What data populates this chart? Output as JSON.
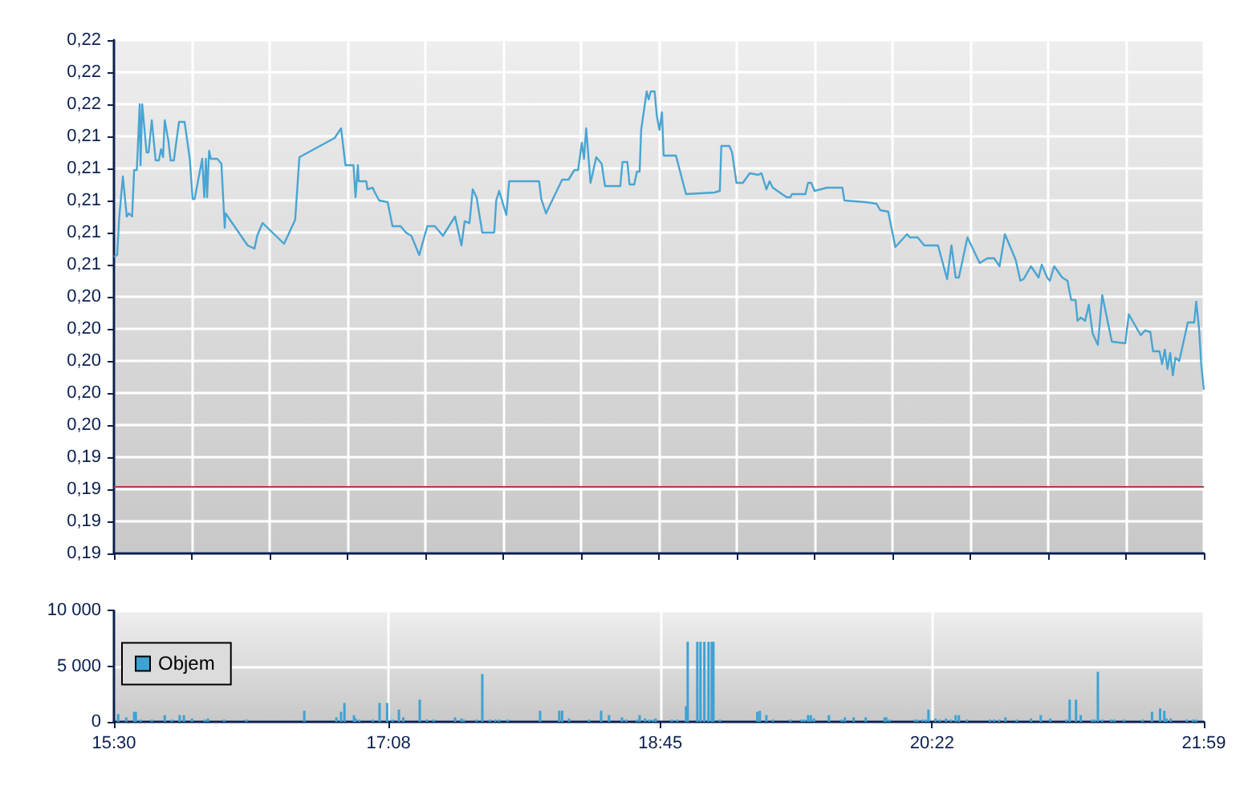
{
  "chart_data": [
    {
      "type": "line",
      "color": "#49a5d3",
      "x": [
        15.5,
        15.519,
        15.531,
        15.553,
        15.576,
        15.589,
        15.608,
        15.62,
        15.636,
        15.653,
        15.658,
        15.668,
        15.694,
        15.706,
        15.725,
        15.748,
        15.767,
        15.78,
        15.792,
        15.802,
        15.824,
        15.837,
        15.856,
        15.887,
        15.92,
        15.951,
        15.968,
        15.98,
        16.025,
        16.037,
        16.047,
        16.054,
        16.066,
        16.076,
        16.114,
        16.139,
        16.159,
        16.164,
        16.295,
        16.336,
        16.352,
        16.384,
        16.512,
        16.578,
        16.603,
        16.813,
        16.851,
        16.877,
        16.925,
        16.937,
        16.951,
        16.956,
        17.001,
        17.008,
        17.039,
        17.052,
        17.078,
        17.128,
        17.157,
        17.205,
        17.237,
        17.269,
        17.316,
        17.364,
        17.409,
        17.457,
        17.529,
        17.567,
        17.586,
        17.615,
        17.634,
        17.657,
        17.691,
        17.762,
        17.774,
        17.791,
        17.834,
        17.851,
        18.029,
        18.042,
        18.07,
        18.166,
        18.204,
        18.239,
        18.261,
        18.283,
        18.296,
        18.309,
        18.335,
        18.369,
        18.401,
        18.421,
        18.512,
        18.525,
        18.554,
        18.567,
        18.595,
        18.611,
        18.627,
        18.636,
        18.669,
        18.681,
        18.693,
        18.716,
        18.729,
        18.745,
        18.76,
        18.77,
        18.843,
        18.903,
        19.072,
        19.104,
        19.113,
        19.161,
        19.177,
        19.203,
        19.241,
        19.282,
        19.333,
        19.352,
        19.381,
        19.4,
        19.419,
        19.502,
        19.524,
        19.533,
        19.613,
        19.629,
        19.648,
        19.667,
        19.74,
        19.833,
        19.845,
        19.972,
        20.036,
        20.058,
        20.106,
        20.148,
        20.218,
        20.234,
        20.281,
        20.32,
        20.361,
        20.402,
        20.456,
        20.482,
        20.507,
        20.526,
        20.577,
        20.65,
        20.695,
        20.736,
        20.768,
        20.8,
        20.864,
        20.892,
        20.911,
        20.955,
        21.0,
        21.019,
        21.051,
        21.067,
        21.093,
        21.141,
        21.172,
        21.194,
        21.22,
        21.232,
        21.251,
        21.277,
        21.299,
        21.322,
        21.353,
        21.379,
        21.436,
        21.516,
        21.537,
        21.608,
        21.633,
        21.665,
        21.681,
        21.719,
        21.735,
        21.751,
        21.767,
        21.783,
        21.799,
        21.814,
        21.837,
        21.888,
        21.926,
        21.938,
        21.955,
        21.967,
        21.983
      ],
      "values": [
        0.2065,
        0.2066,
        0.2089,
        0.2115,
        0.209,
        0.2092,
        0.209,
        0.2119,
        0.2119,
        0.216,
        0.2122,
        0.216,
        0.213,
        0.213,
        0.215,
        0.2125,
        0.2125,
        0.2132,
        0.2127,
        0.215,
        0.2137,
        0.2125,
        0.2125,
        0.2149,
        0.2149,
        0.2126,
        0.2101,
        0.2101,
        0.2126,
        0.2102,
        0.2126,
        0.2102,
        0.2131,
        0.2126,
        0.2126,
        0.2123,
        0.2083,
        0.2092,
        0.2072,
        0.207,
        0.2078,
        0.2086,
        0.2073,
        0.2088,
        0.2127,
        0.2139,
        0.2145,
        0.2122,
        0.2122,
        0.2102,
        0.2122,
        0.2112,
        0.2112,
        0.2107,
        0.2108,
        0.2105,
        0.21,
        0.2099,
        0.2084,
        0.2084,
        0.208,
        0.2078,
        0.2066,
        0.2084,
        0.2084,
        0.2078,
        0.209,
        0.2072,
        0.2087,
        0.2086,
        0.2107,
        0.2102,
        0.208,
        0.208,
        0.21,
        0.2106,
        0.2091,
        0.2112,
        0.2112,
        0.2101,
        0.2092,
        0.2113,
        0.2113,
        0.2119,
        0.2119,
        0.2136,
        0.2126,
        0.2145,
        0.2111,
        0.2127,
        0.2123,
        0.2109,
        0.2109,
        0.2124,
        0.2124,
        0.211,
        0.211,
        0.2118,
        0.2118,
        0.2144,
        0.2168,
        0.2163,
        0.2168,
        0.2168,
        0.2153,
        0.2144,
        0.2155,
        0.2128,
        0.2128,
        0.2104,
        0.2105,
        0.2106,
        0.2134,
        0.2134,
        0.213,
        0.2111,
        0.2111,
        0.2117,
        0.2116,
        0.2117,
        0.2107,
        0.2112,
        0.2108,
        0.2102,
        0.2102,
        0.2104,
        0.2104,
        0.2111,
        0.2111,
        0.2106,
        0.2108,
        0.2108,
        0.21,
        0.2099,
        0.2098,
        0.2094,
        0.2093,
        0.2071,
        0.2079,
        0.2077,
        0.2077,
        0.2072,
        0.2072,
        0.2072,
        0.2051,
        0.2072,
        0.2052,
        0.2052,
        0.2077,
        0.2061,
        0.2064,
        0.2064,
        0.2059,
        0.2079,
        0.2063,
        0.205,
        0.2051,
        0.2059,
        0.2052,
        0.206,
        0.2052,
        0.205,
        0.2059,
        0.2052,
        0.205,
        0.2038,
        0.2038,
        0.2025,
        0.2027,
        0.2025,
        0.2035,
        0.2017,
        0.201,
        0.2041,
        0.2012,
        0.2011,
        0.2029,
        0.2016,
        0.2019,
        0.2018,
        0.2006,
        0.2006,
        0.1998,
        0.2007,
        0.1995,
        0.2005,
        0.1991,
        0.2002,
        0.2,
        0.2024,
        0.2024,
        0.2037,
        0.202,
        0.1999,
        0.1982
      ],
      "xlim": [
        15.5,
        21.9833
      ],
      "xticks": [
        {
          "value": 15.5,
          "label": null
        },
        {
          "value": 15.9631,
          "label": null
        },
        {
          "value": 16.4262,
          "label": null
        },
        {
          "value": 16.8893,
          "label": null
        },
        {
          "value": 17.3524,
          "label": null
        },
        {
          "value": 17.8155,
          "label": null
        },
        {
          "value": 18.2786,
          "label": null
        },
        {
          "value": 18.7417,
          "label": null
        },
        {
          "value": 19.2048,
          "label": null
        },
        {
          "value": 19.6679,
          "label": null
        },
        {
          "value": 20.131,
          "label": null
        },
        {
          "value": 20.5941,
          "label": null
        },
        {
          "value": 21.0572,
          "label": null
        },
        {
          "value": 21.5203,
          "label": null
        },
        {
          "value": 21.9833,
          "label": null
        }
      ],
      "ylim": [
        0.188,
        0.22
      ],
      "yticks": [
        {
          "value": 0.188,
          "label": "0,19"
        },
        {
          "value": 0.19,
          "label": "0,19"
        },
        {
          "value": 0.192,
          "label": "0,19"
        },
        {
          "value": 0.194,
          "label": "0,19"
        },
        {
          "value": 0.196,
          "label": "0,20"
        },
        {
          "value": 0.198,
          "label": "0,20"
        },
        {
          "value": 0.2,
          "label": "0,20"
        },
        {
          "value": 0.202,
          "label": "0,20"
        },
        {
          "value": 0.204,
          "label": "0,20"
        },
        {
          "value": 0.206,
          "label": "0,21"
        },
        {
          "value": 0.208,
          "label": "0,21"
        },
        {
          "value": 0.21,
          "label": "0,21"
        },
        {
          "value": 0.212,
          "label": "0,21"
        },
        {
          "value": 0.214,
          "label": "0,21"
        },
        {
          "value": 0.216,
          "label": "0,22"
        },
        {
          "value": 0.218,
          "label": "0,22"
        },
        {
          "value": 0.22,
          "label": "0,22"
        }
      ],
      "ref_lines": [
        {
          "axis": "y",
          "value": 0.1922,
          "color": "#b04040"
        }
      ],
      "grid": true,
      "tick_labels": "y"
    },
    {
      "type": "bar",
      "legend": "left",
      "series": [
        {
          "name": "Objem",
          "color": "#3ea2d2",
          "x": [
            15.525,
            15.573,
            15.62,
            15.63,
            15.658,
            15.725,
            15.802,
            15.844,
            15.891,
            15.916,
            15.964,
            16.04,
            16.059,
            16.155,
            16.288,
            16.632,
            16.823,
            16.851,
            16.871,
            16.928,
            16.937,
            16.96,
            17.039,
            17.08,
            17.125,
            17.157,
            17.195,
            17.221,
            17.319,
            17.361,
            17.402,
            17.529,
            17.567,
            17.581,
            17.657,
            17.691,
            17.736,
            17.768,
            17.791,
            17.841,
            18.035,
            18.149,
            18.166,
            18.207,
            18.325,
            18.398,
            18.445,
            18.522,
            18.547,
            18.611,
            18.627,
            18.659,
            18.684,
            18.707,
            18.722,
            18.818,
            18.85,
            18.903,
            18.913,
            18.97,
            18.989,
            19.012,
            19.037,
            19.056,
            19.066,
            19.104,
            19.327,
            19.342,
            19.381,
            19.419,
            19.524,
            19.591,
            19.607,
            19.629,
            19.645,
            19.664,
            19.753,
            19.829,
            19.848,
            19.9,
            19.972,
            20.084,
            20.094,
            20.113,
            20.265,
            20.281,
            20.31,
            20.329,
            20.345,
            20.387,
            20.412,
            20.45,
            20.478,
            20.507,
            20.526,
            20.574,
            20.711,
            20.736,
            20.764,
            20.803,
            20.87,
            20.955,
            21.013,
            21.07,
            21.165,
            21.185,
            21.223,
            21.251,
            21.318,
            21.334,
            21.353,
            21.379,
            21.433,
            21.452,
            21.509,
            21.618,
            21.675,
            21.723,
            21.748,
            21.761,
            21.786,
            21.881,
            21.919,
            21.938
          ],
          "values": [
            700,
            400,
            900,
            900,
            200,
            200,
            600,
            200,
            600,
            600,
            300,
            200,
            300,
            200,
            200,
            1000,
            400,
            900,
            1700,
            600,
            300,
            200,
            200,
            1700,
            1700,
            200,
            1100,
            400,
            2000,
            200,
            200,
            400,
            300,
            200,
            200,
            4300,
            200,
            200,
            200,
            200,
            1000,
            1000,
            1000,
            300,
            200,
            1000,
            600,
            400,
            200,
            200,
            600,
            300,
            200,
            200,
            300,
            200,
            200,
            1400,
            7200,
            7200,
            7200,
            7200,
            7200,
            7200,
            7200,
            200,
            900,
            1000,
            600,
            200,
            200,
            200,
            200,
            600,
            600,
            300,
            600,
            200,
            400,
            400,
            400,
            400,
            400,
            200,
            200,
            200,
            200,
            200,
            1100,
            300,
            200,
            300,
            200,
            600,
            600,
            200,
            200,
            200,
            200,
            400,
            200,
            300,
            600,
            300,
            200,
            2000,
            2000,
            600,
            200,
            200,
            4500,
            200,
            200,
            200,
            200,
            200,
            900,
            1200,
            1000,
            300,
            300,
            200,
            200,
            200
          ]
        }
      ],
      "xlim": [
        15.5,
        21.9833
      ],
      "xticks": [
        {
          "value": 15.5,
          "label": "15:30"
        },
        {
          "value": 17.1333,
          "label": "17:08"
        },
        {
          "value": 18.75,
          "label": "18:45"
        },
        {
          "value": 20.3667,
          "label": "20:22"
        },
        {
          "value": 21.9833,
          "label": "21:59"
        }
      ],
      "ylim": [
        0,
        10000
      ],
      "yticks": [
        0,
        {
          "value": 5000,
          "label": "5 000"
        },
        {
          "value": 10000,
          "label": "10 000"
        }
      ],
      "grid": true
    }
  ]
}
